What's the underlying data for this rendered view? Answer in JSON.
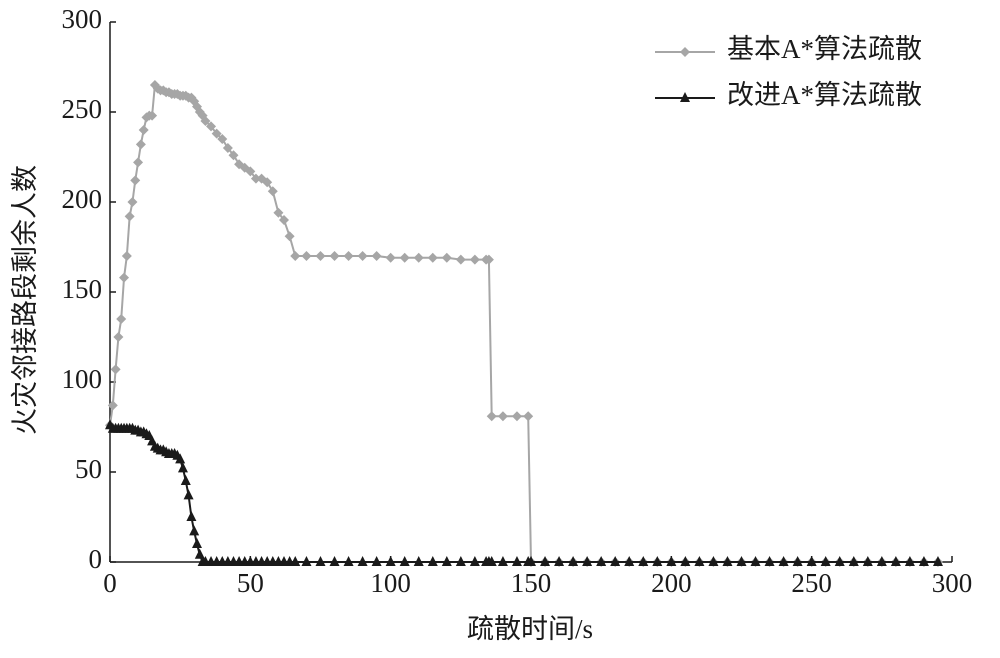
{
  "chart_data": {
    "type": "line",
    "x_label": "疏散时间/s",
    "y_label": "火灾邻接路段剩余人数",
    "x": [
      0,
      1,
      2,
      3,
      4,
      5,
      6,
      7,
      8,
      9,
      10,
      11,
      12,
      13,
      14,
      15,
      16,
      17,
      18,
      19,
      20,
      21,
      22,
      23,
      24,
      25,
      26,
      27,
      28,
      29,
      30,
      31,
      32,
      33,
      34,
      36,
      38,
      40,
      42,
      44,
      46,
      48,
      50,
      52,
      54,
      56,
      58,
      60,
      62,
      64,
      66,
      70,
      75,
      80,
      85,
      90,
      95,
      100,
      105,
      110,
      115,
      120,
      125,
      130,
      134,
      135,
      136,
      140,
      145,
      149,
      150,
      155,
      160,
      165,
      170,
      175,
      180,
      185,
      190,
      195,
      200,
      205,
      210,
      215,
      220,
      225,
      230,
      235,
      240,
      245,
      250,
      255,
      260,
      265,
      270,
      275,
      280,
      285,
      290,
      295
    ],
    "series": [
      {
        "name": "基本A*算法疏散",
        "color": "#a6a6a6",
        "marker": "diamond",
        "values": [
          76,
          87,
          107,
          125,
          135,
          158,
          170,
          192,
          200,
          212,
          222,
          232,
          240,
          247,
          248,
          248,
          265,
          263,
          262,
          262,
          261,
          261,
          260,
          260,
          260,
          259,
          259,
          259,
          258,
          258,
          256,
          253,
          250,
          248,
          245,
          242,
          238,
          235,
          230,
          226,
          221,
          219,
          217,
          213,
          213,
          211,
          206,
          194,
          190,
          181,
          170,
          170,
          170,
          170,
          170,
          170,
          170,
          169,
          169,
          169,
          169,
          169,
          168,
          168,
          168,
          168,
          81,
          81,
          81,
          81,
          0,
          0,
          0,
          0,
          0,
          0,
          0,
          0,
          0,
          0,
          0,
          0,
          0,
          0,
          0,
          0,
          0,
          0,
          0,
          0,
          0,
          0,
          0,
          0,
          0,
          0,
          0,
          0,
          0,
          0
        ]
      },
      {
        "name": "改进A*算法疏散",
        "color": "#1a1a1a",
        "marker": "triangle",
        "values": [
          76,
          74,
          74,
          74,
          74,
          74,
          74,
          74,
          74,
          73,
          73,
          72,
          72,
          71,
          70,
          67,
          64,
          63,
          62,
          62,
          61,
          60,
          60,
          60,
          59,
          57,
          52,
          45,
          37,
          25,
          17,
          10,
          4,
          0,
          0,
          0,
          0,
          0,
          0,
          0,
          0,
          0,
          0,
          0,
          0,
          0,
          0,
          0,
          0,
          0,
          0,
          0,
          0,
          0,
          0,
          0,
          0,
          0,
          0,
          0,
          0,
          0,
          0,
          0,
          0,
          0,
          0,
          0,
          0,
          0,
          0,
          0,
          0,
          0,
          0,
          0,
          0,
          0,
          0,
          0,
          0,
          0,
          0,
          0,
          0,
          0,
          0,
          0,
          0,
          0,
          0,
          0,
          0,
          0,
          0,
          0,
          0,
          0,
          0,
          0
        ]
      }
    ],
    "xlim": [
      0,
      300
    ],
    "xticks": [
      0,
      50,
      100,
      150,
      200,
      250,
      300
    ],
    "ylim": [
      0,
      300
    ],
    "yticks": [
      0,
      50,
      100,
      150,
      200,
      250,
      300
    ],
    "legend": "upper right"
  }
}
